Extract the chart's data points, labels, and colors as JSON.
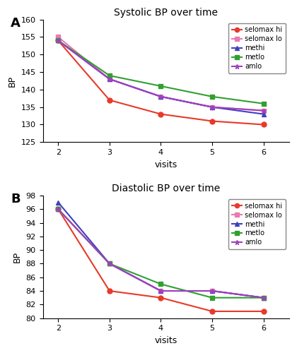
{
  "visits": [
    2,
    3,
    4,
    5,
    6
  ],
  "systolic": {
    "title": "Systolic BP over time",
    "ylabel": "BP",
    "xlabel": "visits",
    "ylim": [
      125,
      160
    ],
    "yticks": [
      125,
      130,
      135,
      140,
      145,
      150,
      155,
      160
    ],
    "series": {
      "selomax hi": {
        "values": [
          154,
          137,
          133,
          131,
          130
        ],
        "color": "#e8392a",
        "marker": "o"
      },
      "selomax lo": {
        "values": [
          155,
          143,
          138,
          135,
          134
        ],
        "color": "#e87bb0",
        "marker": "s"
      },
      "methi": {
        "values": [
          154,
          143,
          138,
          135,
          133
        ],
        "color": "#4040c0",
        "marker": "^"
      },
      "metlo": {
        "values": [
          154,
          144,
          141,
          138,
          136
        ],
        "color": "#30a030",
        "marker": "s"
      },
      "amlo": {
        "values": [
          154,
          143,
          138,
          135,
          134
        ],
        "color": "#a040c0",
        "marker": "*"
      }
    }
  },
  "diastolic": {
    "title": "Diastolic BP over time",
    "ylabel": "BP",
    "xlabel": "visits",
    "ylim": [
      80,
      98
    ],
    "yticks": [
      80,
      82,
      84,
      86,
      88,
      90,
      92,
      94,
      96,
      98
    ],
    "series": {
      "selomax hi": {
        "values": [
          96,
          84,
          83,
          81,
          81
        ],
        "color": "#e8392a",
        "marker": "o"
      },
      "selomax lo": {
        "values": [
          96,
          88,
          84,
          84,
          83
        ],
        "color": "#e87bb0",
        "marker": "s"
      },
      "methi": {
        "values": [
          97,
          88,
          84,
          84,
          83
        ],
        "color": "#4040c0",
        "marker": "^"
      },
      "metlo": {
        "values": [
          96,
          88,
          85,
          83,
          83
        ],
        "color": "#30a030",
        "marker": "s"
      },
      "amlo": {
        "values": [
          96,
          88,
          84,
          84,
          83
        ],
        "color": "#a040c0",
        "marker": "*"
      }
    }
  },
  "legend_order": [
    "selomax hi",
    "selomax lo",
    "methi",
    "metlo",
    "amlo"
  ],
  "figure_bg": "#ffffff"
}
